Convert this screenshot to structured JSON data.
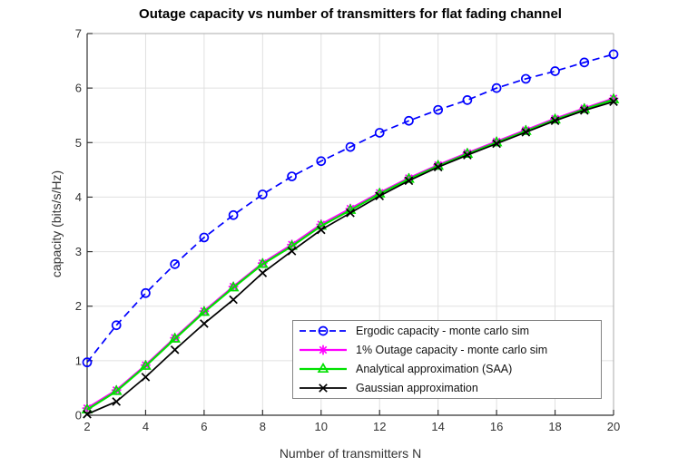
{
  "figure": {
    "title": "Outage capacity vs number of transmitters for flat fading channel",
    "xlabel": "Number of transmitters N",
    "ylabel": "capacity (bits/s/Hz)"
  },
  "chart_data": {
    "type": "line",
    "title": "Outage capacity vs number of transmitters for flat fading channel",
    "xlabel": "Number of transmitters N",
    "ylabel": "capacity (bits/s/Hz)",
    "xlim": [
      2,
      20
    ],
    "ylim": [
      0,
      7
    ],
    "xticks": [
      2,
      4,
      6,
      8,
      10,
      12,
      14,
      16,
      18,
      20
    ],
    "yticks": [
      0,
      1,
      2,
      3,
      4,
      5,
      6,
      7
    ],
    "grid": true,
    "legend_position": "inside-lower-right",
    "x": [
      2,
      3,
      4,
      5,
      6,
      7,
      8,
      9,
      10,
      11,
      12,
      13,
      14,
      15,
      16,
      17,
      18,
      19,
      20
    ],
    "series": [
      {
        "name": "Ergodic capacity - monte carlo sim",
        "color": "#0000ff",
        "line": "dashed",
        "marker": "circle",
        "values": [
          0.97,
          1.65,
          2.24,
          2.77,
          3.26,
          3.67,
          4.05,
          4.38,
          4.66,
          4.92,
          5.18,
          5.4,
          5.6,
          5.78,
          6.0,
          6.17,
          6.31,
          6.47,
          6.62
        ]
      },
      {
        "name": "1% Outage capacity - monte carlo sim",
        "color": "#ff00ff",
        "line": "solid",
        "marker": "asterisk",
        "values": [
          0.13,
          0.46,
          0.92,
          1.42,
          1.91,
          2.36,
          2.79,
          3.13,
          3.5,
          3.79,
          4.08,
          4.35,
          4.59,
          4.81,
          5.02,
          5.23,
          5.44,
          5.63,
          5.81
        ]
      },
      {
        "name": "Analytical approximation (SAA)",
        "color": "#00e100",
        "line": "solid",
        "marker": "triangle-up",
        "values": [
          0.1,
          0.44,
          0.9,
          1.4,
          1.89,
          2.34,
          2.77,
          3.1,
          3.47,
          3.76,
          4.06,
          4.33,
          4.57,
          4.79,
          5.0,
          5.21,
          5.42,
          5.61,
          5.79
        ]
      },
      {
        "name": "Gaussian approximation",
        "color": "#000000",
        "line": "solid",
        "marker": "x",
        "values": [
          0.02,
          0.25,
          0.7,
          1.2,
          1.68,
          2.12,
          2.61,
          3.01,
          3.4,
          3.71,
          4.02,
          4.3,
          4.55,
          4.77,
          4.98,
          5.19,
          5.4,
          5.59,
          5.75
        ]
      }
    ],
    "style": {
      "grid_color": "#e0e0e0",
      "axis_color": "#333333",
      "box_light_color": "#ababab",
      "tick_label_color": "#333333"
    }
  }
}
